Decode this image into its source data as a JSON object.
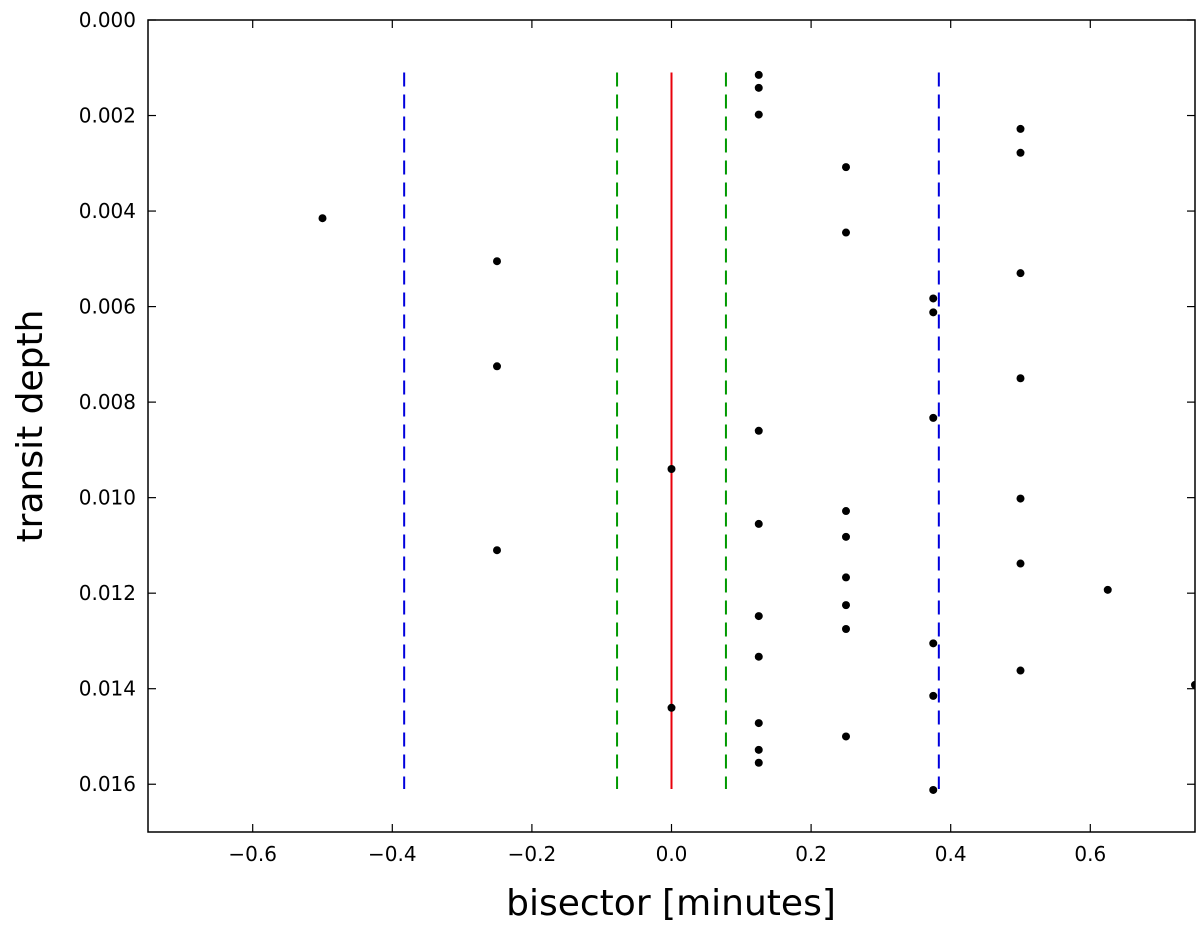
{
  "chart_data": {
    "type": "scatter",
    "title": "",
    "xlabel": "bisector [minutes]",
    "ylabel": "transit depth",
    "xlim": [
      -0.75,
      0.75
    ],
    "ylim": [
      0.017,
      0.0
    ],
    "y_inverted": true,
    "grid": false,
    "x_ticks": [
      -0.6,
      -0.4,
      -0.2,
      0.0,
      0.2,
      0.4,
      0.6
    ],
    "x_tick_labels": [
      "−0.6",
      "−0.4",
      "−0.2",
      "0.0",
      "0.2",
      "0.4",
      "0.6"
    ],
    "y_ticks": [
      0.0,
      0.002,
      0.004,
      0.006,
      0.008,
      0.01,
      0.012,
      0.014,
      0.016
    ],
    "y_tick_labels": [
      "0.000",
      "0.002",
      "0.004",
      "0.006",
      "0.008",
      "0.010",
      "0.012",
      "0.014",
      "0.016"
    ],
    "points": {
      "color": "#000000",
      "x": [
        -0.5,
        -0.25,
        -0.25,
        -0.25,
        0.0,
        0.0,
        0.125,
        0.125,
        0.125,
        0.125,
        0.125,
        0.125,
        0.125,
        0.125,
        0.125,
        0.125,
        0.25,
        0.25,
        0.25,
        0.25,
        0.25,
        0.25,
        0.25,
        0.25,
        0.375,
        0.375,
        0.375,
        0.375,
        0.375,
        0.375,
        0.5,
        0.5,
        0.5,
        0.5,
        0.5,
        0.5,
        0.5,
        0.625,
        0.75
      ],
      "y": [
        0.00415,
        0.00505,
        0.00725,
        0.0111,
        0.0094,
        0.0144,
        0.00115,
        0.00142,
        0.00198,
        0.0086,
        0.01055,
        0.01248,
        0.01333,
        0.01472,
        0.01528,
        0.01555,
        0.00308,
        0.00445,
        0.01028,
        0.01082,
        0.01167,
        0.01225,
        0.01275,
        0.015,
        0.00583,
        0.00612,
        0.00833,
        0.01305,
        0.01415,
        0.01612,
        0.00228,
        0.00278,
        0.0053,
        0.0075,
        0.01002,
        0.01138,
        0.01362,
        0.01193,
        0.01392
      ]
    },
    "vertical_lines": [
      {
        "x": 0.0,
        "color": "#e8000b",
        "style": "solid",
        "y_from": 0.0011,
        "y_to": 0.0161
      },
      {
        "x": -0.078,
        "color": "#009900",
        "style": "dashed",
        "y_from": 0.0011,
        "y_to": 0.0161
      },
      {
        "x": 0.078,
        "color": "#009900",
        "style": "dashed",
        "y_from": 0.0011,
        "y_to": 0.0161
      },
      {
        "x": -0.383,
        "color": "#0000dd",
        "style": "dashed",
        "y_from": 0.0011,
        "y_to": 0.0161
      },
      {
        "x": 0.383,
        "color": "#0000dd",
        "style": "dashed",
        "y_from": 0.0011,
        "y_to": 0.0161
      }
    ]
  }
}
